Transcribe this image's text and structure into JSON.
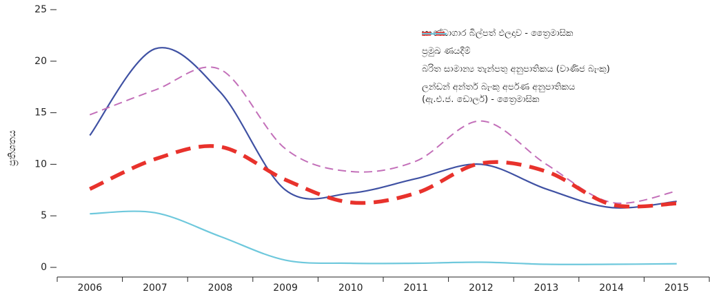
{
  "chart_data": {
    "type": "line",
    "y_label": "ප්‍රතිශතය",
    "categories": [
      "2006",
      "2007",
      "2008",
      "2009",
      "2010",
      "2011",
      "2012",
      "2013",
      "2014",
      "2015"
    ],
    "series": [
      {
        "name": "භාණ්ඩාගාර බිල්පත් ඵලදාව - ත්‍රෛමාසික",
        "color": "#3f51a3",
        "line_style": "solid",
        "values": [
          12.8,
          21.2,
          17.0,
          7.5,
          7.2,
          8.6,
          10.0,
          7.6,
          5.8,
          6.4
        ]
      },
      {
        "name": "ප්‍රමුඛ ණයදීම්",
        "color": "#c36fb9",
        "line_style": "dashed",
        "values": [
          14.8,
          17.2,
          19.2,
          11.5,
          9.3,
          10.3,
          14.2,
          10.0,
          6.3,
          7.4
        ]
      },
      {
        "name": "බරිත සාමාන්‍ය තැන්පතු අනුපාතිකය (වාණිජ බැංකු)",
        "color": "#e8322c",
        "line_style": "bold-dashed",
        "values": [
          7.6,
          10.5,
          11.7,
          8.5,
          6.3,
          7.2,
          10.1,
          9.3,
          6.1,
          6.2
        ]
      },
      {
        "name": "ලන්ඩන් අන්තර් බැංකු අර්පණ අනුපාතිකය\n(ඇ.එ.ජ. ඩොලර්) - ත්‍රෛමාසික",
        "color": "#6ec8dc",
        "line_style": "solid",
        "values": [
          5.2,
          5.3,
          3.0,
          0.7,
          0.4,
          0.4,
          0.5,
          0.3,
          0.3,
          0.35
        ]
      }
    ],
    "ylim": [
      0,
      25
    ],
    "yticks": [
      0,
      5,
      10,
      15,
      20,
      25
    ],
    "grid": false,
    "legend": "upper right"
  }
}
